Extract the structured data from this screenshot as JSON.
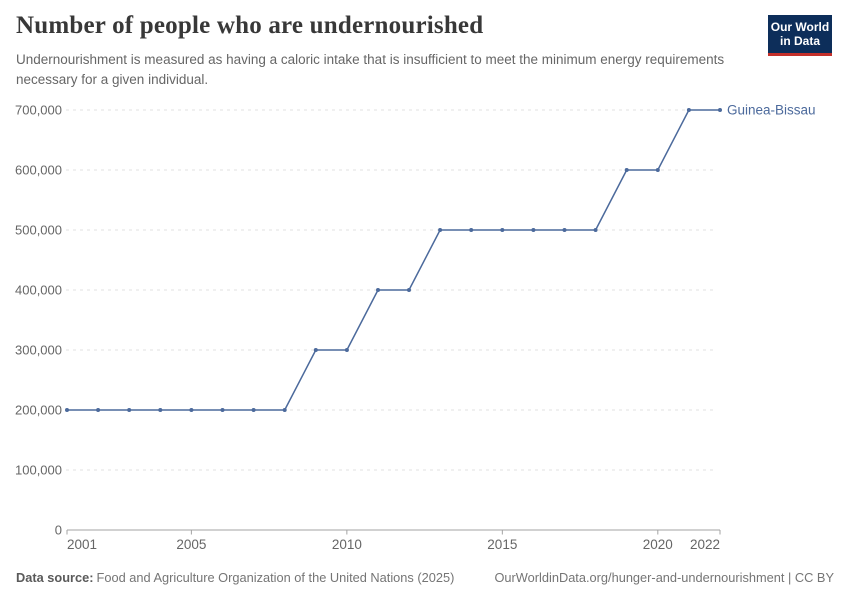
{
  "header": {
    "title": "Number of people who are undernourished",
    "subtitle": "Undernourishment is measured as having a caloric intake that is insufficient to meet the minimum energy requirements necessary for a given individual.",
    "logo": {
      "line1": "Our World",
      "line2": "in Data"
    }
  },
  "chart_data": {
    "type": "line",
    "title": "Number of people who are undernourished",
    "xlabel": "",
    "ylabel": "",
    "xlim": [
      2001,
      2022
    ],
    "ylim": [
      0,
      700000
    ],
    "grid": "horizontal-dashed",
    "legend_position": "end-of-line-label",
    "x_ticks": [
      2001,
      2005,
      2010,
      2015,
      2020,
      2022
    ],
    "y_ticks": [
      0,
      100000,
      200000,
      300000,
      400000,
      500000,
      600000,
      700000
    ],
    "series": [
      {
        "name": "Guinea-Bissau",
        "x": [
          2001,
          2002,
          2003,
          2004,
          2005,
          2006,
          2007,
          2008,
          2009,
          2010,
          2011,
          2012,
          2013,
          2014,
          2015,
          2016,
          2017,
          2018,
          2019,
          2020,
          2021,
          2022
        ],
        "values": [
          200000,
          200000,
          200000,
          200000,
          200000,
          200000,
          200000,
          200000,
          300000,
          300000,
          400000,
          400000,
          500000,
          500000,
          500000,
          500000,
          500000,
          500000,
          600000,
          600000,
          700000,
          700000
        ]
      }
    ],
    "colors": {
      "line": "#4c6a9c",
      "end_label": "#4c6a9c",
      "grid": "#e0e0e0",
      "axis": "#a3a3a3",
      "tick_text": "#666666"
    }
  },
  "footer": {
    "source_label": "Data source:",
    "source_text": "Food and Agriculture Organization of the United Nations (2025)",
    "link_text": "OurWorldinData.org/hunger-and-undernourishment | CC BY"
  },
  "brand_colors": {
    "logo_navy": "#0d2e5a",
    "logo_red": "#c4302b"
  }
}
